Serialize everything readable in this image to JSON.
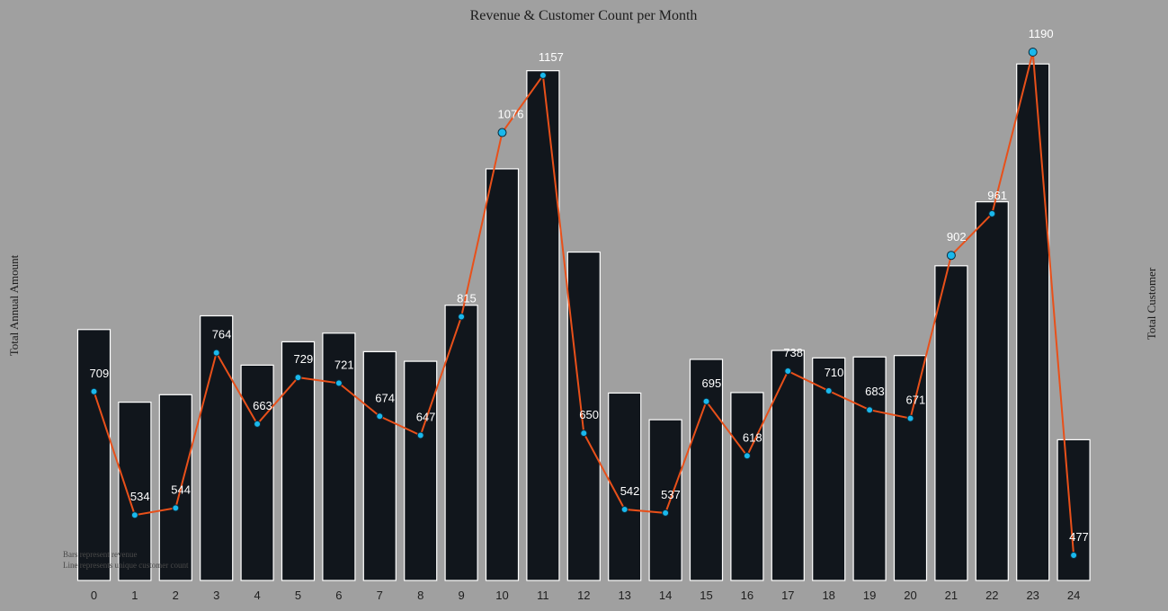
{
  "chart_data": {
    "type": "bar",
    "title": "Revenue & Customer Count per Month",
    "ylabel": "Total Annual Amount",
    "y2label": "Total Customer",
    "categories": [
      "0",
      "1",
      "2",
      "3",
      "4",
      "5",
      "6",
      "7",
      "8",
      "9",
      "10",
      "11",
      "12",
      "13",
      "14",
      "15",
      "16",
      "17",
      "18",
      "19",
      "20",
      "21",
      "22",
      "23",
      "24"
    ],
    "series": [
      {
        "type": "bar",
        "values": [
          1043,
          741,
          772,
          1100,
          895,
          992,
          1028,
          951,
          911,
          1144,
          1711,
          2119,
          1365,
          779,
          668,
          919,
          781,
          956,
          925,
          929,
          935,
          1308,
          1574,
          2147,
          585
        ]
      },
      {
        "type": "line",
        "axis": "right",
        "values": [
          709,
          534,
          544,
          764,
          663,
          729,
          721,
          674,
          647,
          815,
          1076,
          1157,
          650,
          542,
          537,
          695,
          618,
          738,
          710,
          683,
          671,
          902,
          961,
          1190,
          477
        ]
      }
    ],
    "ylim": [
      0,
      2200
    ],
    "y2lim": [
      440,
      1210
    ],
    "notes": [
      "Bars represent revenue",
      "Line represents unique customer count"
    ],
    "colors": {
      "background": "#a0a0a0",
      "bar_fill": "#11161c",
      "bar_edge": "#ffffff",
      "line": "#e8501a",
      "marker": "#1ab8ec",
      "marker_edge": "#0c2a3a",
      "data_label": "#ffffff"
    }
  }
}
